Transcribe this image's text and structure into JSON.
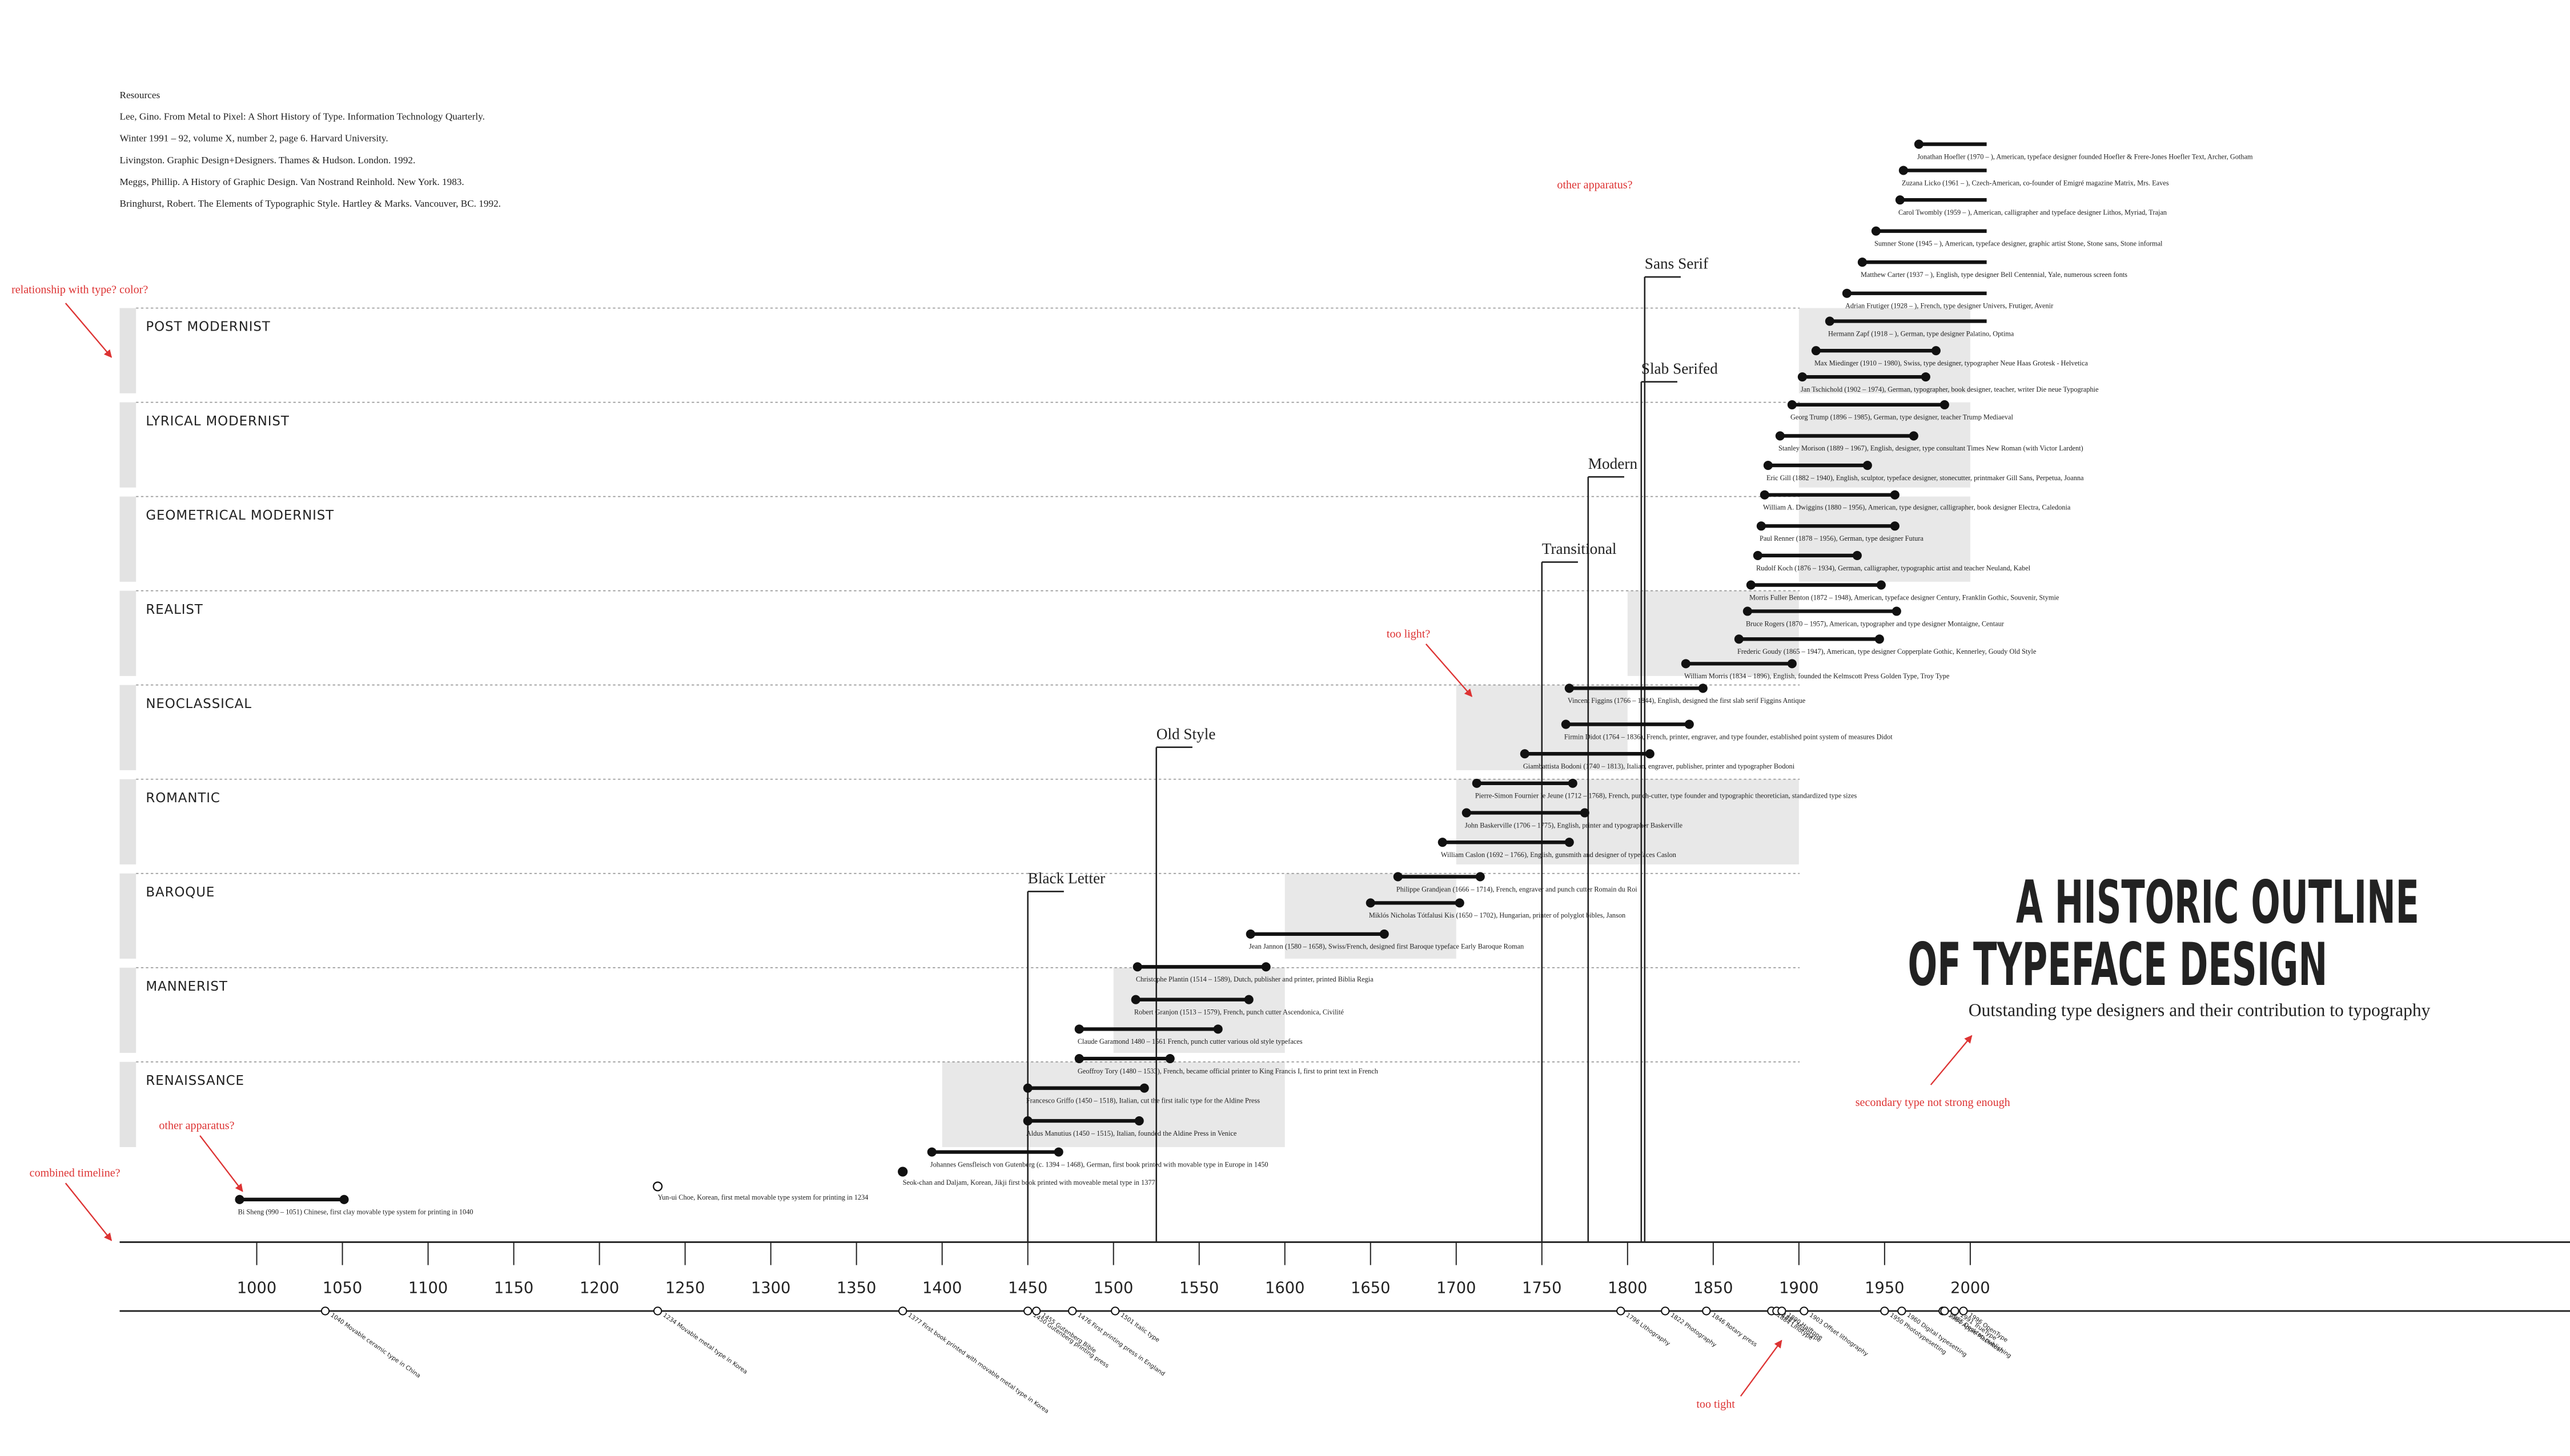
{
  "resources": {
    "heading": "Resources",
    "items": [
      "Lee, Gino. From Metal to Pixel: A Short History of Type. Information Technology Quarterly.",
      "Winter 1991 – 92, volume X, number 2, page 6. Harvard University.",
      "Livingston. Graphic Design+Designers. Thames & Hudson. London. 1992.",
      "Meggs, Phillip. A History of Graphic Design. Van Nostrand Reinhold. New York. 1983.",
      "Bringhurst, Robert. The Elements of Typographic Style. Hartley & Marks. Vancouver, BC. 1992."
    ]
  },
  "title": [
    "A HISTORIC OUTLINE",
    "OF TYPEFACE DESIGN"
  ],
  "subtitle": "Outstanding type designers and their contribution to typography",
  "axis": {
    "xlim": [
      920,
      2350
    ],
    "ticks": [
      1000,
      1050,
      1100,
      1150,
      1200,
      1250,
      1300,
      1350,
      1400,
      1450,
      1500,
      1550,
      1600,
      1650,
      1700,
      1750,
      1800,
      1850,
      1900,
      1950,
      2000
    ]
  },
  "periods": [
    {
      "name": "POST MODERNIST",
      "start": 1900,
      "end": 2000
    },
    {
      "name": "LYRICAL MODERNIST",
      "start": 1900,
      "end": 2000
    },
    {
      "name": "GEOMETRICAL MODERNIST",
      "start": 1900,
      "end": 2000
    },
    {
      "name": "REALIST",
      "start": 1800,
      "end": 1900
    },
    {
      "name": "NEOCLASSICAL",
      "start": 1700,
      "end": 1800
    },
    {
      "name": "ROMANTIC",
      "start": 1700,
      "end": 1900
    },
    {
      "name": "BAROQUE",
      "start": 1600,
      "end": 1700
    },
    {
      "name": "MANNERIST",
      "start": 1500,
      "end": 1600
    },
    {
      "name": "RENAISSANCE",
      "start": 1400,
      "end": 1600
    }
  ],
  "styles": [
    {
      "name": "Black Letter",
      "year": 1450
    },
    {
      "name": "Old Style",
      "year": 1525
    },
    {
      "name": "Transitional",
      "year": 1750
    },
    {
      "name": "Modern",
      "year": 1777
    },
    {
      "name": "Slab Serifed",
      "year": 1808
    },
    {
      "name": "Sans Serif",
      "year": 1810
    }
  ],
  "designers": [
    {
      "label": "Bi Sheng (990 – 1051) Chinese, first clay movable type system for printing in 1040",
      "born": 990,
      "died": 1051
    },
    {
      "label": "Yun-ui Choe, Korean, first metal movable type system for printing in 1234",
      "year": 1234,
      "marker": "open"
    },
    {
      "label": "Seok-chan and Daljam, Korean, Jikji first book printed with moveable metal type in 1377",
      "year": 1377,
      "marker": "filled"
    },
    {
      "label": "Johannes Gensfleisch von Gutenberg (c. 1394 – 1468), German, first book printed with movable type in Europe in 1450",
      "born": 1394,
      "died": 1468
    },
    {
      "label": "Aldus Manutius (1450 – 1515), Italian, founded the Aldine Press in Venice",
      "born": 1450,
      "died": 1515
    },
    {
      "label": "Francesco Griffo (1450 – 1518), Italian, cut the first italic type for the Aldine Press",
      "born": 1450,
      "died": 1518
    },
    {
      "label": "Geoffroy Tory (1480 – 1533), French, became official printer to King Francis I, first to print text in French",
      "born": 1480,
      "died": 1533
    },
    {
      "label": "Claude Garamond 1480 – 1561 French, punch cutter various old style typefaces",
      "born": 1480,
      "died": 1561
    },
    {
      "label": "Robert Granjon (1513 – 1579), French, punch cutter Ascendonica, Civilité",
      "born": 1513,
      "died": 1579
    },
    {
      "label": "Christophe Plantin (1514 – 1589), Dutch, publisher and printer, printed Biblia Regia",
      "born": 1514,
      "died": 1589
    },
    {
      "label": "Jean Jannon (1580 – 1658), Swiss/French, designed first Baroque typeface Early Baroque Roman",
      "born": 1580,
      "died": 1658
    },
    {
      "label": "Miklós Nicholas Tótfalusi Kis (1650 – 1702), Hungarian, printer of polyglot bibles, Janson",
      "born": 1650,
      "died": 1702
    },
    {
      "label": "Philippe Grandjean (1666 – 1714), French, engraver and punch cutter Romain du Roi",
      "born": 1666,
      "died": 1714
    },
    {
      "label": "William Caslon (1692 – 1766), English, gunsmith and designer of typefaces Caslon",
      "born": 1692,
      "died": 1766
    },
    {
      "label": "John Baskerville (1706 – 1775), English, printer and typographer Baskerville",
      "born": 1706,
      "died": 1775
    },
    {
      "label": "Pierre-Simon Fournier le Jeune (1712 – 1768), French, punch-cutter, type founder and typographic theoretician, standardized type sizes",
      "born": 1712,
      "died": 1768
    },
    {
      "label": "Giambattista Bodoni (1740 – 1813), Italian, engraver, publisher, printer and typographer Bodoni",
      "born": 1740,
      "died": 1813
    },
    {
      "label": "Firmin Didot (1764 – 1836), French, printer, engraver, and type founder, established point system of measures Didot",
      "born": 1764,
      "died": 1836
    },
    {
      "label": "Vincent Figgins (1766 – 1844), English, designed the first slab serif Figgins Antique",
      "born": 1766,
      "died": 1844
    },
    {
      "label": "William Morris (1834 – 1896), English, founded the Kelmscott Press Golden Type, Troy Type",
      "born": 1834,
      "died": 1896
    },
    {
      "label": "Frederic Goudy (1865 – 1947), American, type designer Copperplate Gothic, Kennerley, Goudy Old Style",
      "born": 1865,
      "died": 1947
    },
    {
      "label": "Bruce Rogers (1870 – 1957), American, typographer and type designer Montaigne, Centaur",
      "born": 1870,
      "died": 1957
    },
    {
      "label": "Morris Fuller Benton (1872 – 1948), American, typeface designer Century, Franklin Gothic, Souvenir, Stymie",
      "born": 1872,
      "died": 1948
    },
    {
      "label": "Rudolf Koch (1876 – 1934), German, calligrapher, typographic artist and teacher Neuland, Kabel",
      "born": 1876,
      "died": 1934
    },
    {
      "label": "Paul Renner (1878 – 1956), German, type designer Futura",
      "born": 1878,
      "died": 1956
    },
    {
      "label": "William A. Dwiggins (1880 – 1956), American, type designer, calligrapher, book designer Electra, Caledonia",
      "born": 1880,
      "died": 1956
    },
    {
      "label": "Eric Gill (1882 – 1940), English, sculptor, typeface designer, stonecutter, printmaker Gill Sans, Perpetua, Joanna",
      "born": 1882,
      "died": 1940
    },
    {
      "label": "Stanley Morison (1889 – 1967), English, designer, type consultant Times New Roman (with Victor Lardent)",
      "born": 1889,
      "died": 1967
    },
    {
      "label": "Georg Trump (1896 – 1985), German, type designer, teacher Trump Mediaeval",
      "born": 1896,
      "died": 1985
    },
    {
      "label": "Jan Tschichold (1902 – 1974), German, typographer, book designer, teacher, writer Die neue Typographie",
      "born": 1902,
      "died": 1974
    },
    {
      "label": "Max Miedinger (1910 – 1980), Swiss, type designer, typographer Neue Haas Grotesk - Helvetica",
      "born": 1910,
      "died": 1980
    },
    {
      "label": "Hermann Zapf (1918 – ), German, type designer Palatino, Optima",
      "born": 1918,
      "died": null
    },
    {
      "label": "Adrian Frutiger (1928 – ), French, type designer Univers, Frutiger, Avenir",
      "born": 1928,
      "died": null
    },
    {
      "label": "Matthew Carter (1937 – ), English, type designer Bell Centennial, Yale, numerous screen fonts",
      "born": 1937,
      "died": null
    },
    {
      "label": "Sumner Stone (1945 – ), American, typeface designer, graphic artist Stone, Stone sans, Stone informal",
      "born": 1945,
      "died": null
    },
    {
      "label": "Carol Twombly (1959 – ), American, calligrapher and typeface designer Lithos, Myriad, Trajan",
      "born": 1959,
      "died": null
    },
    {
      "label": "Zuzana Licko (1961 – ), Czech-American, co-founder of Emigré magazine Matrix, Mrs. Eaves",
      "born": 1961,
      "died": null
    },
    {
      "label": "Jonathan Hoefler (1970 – ), American, typeface designer founded Hoefler & Frere-Jones Hoefler Text, Archer, Gotham",
      "born": 1970,
      "died": null
    }
  ],
  "events": [
    {
      "label": "1040 Movable ceramic type in China",
      "year": 1040
    },
    {
      "label": "1234 Movable metal type in Korea",
      "year": 1234
    },
    {
      "label": "1377 First book printed with movable metal type in Korea",
      "year": 1377
    },
    {
      "label": "1450 Gutenberg printing press",
      "year": 1450
    },
    {
      "label": "1455 Gutenberg Bible",
      "year": 1455
    },
    {
      "label": "1476 First printing press in England",
      "year": 1476
    },
    {
      "label": "1501 Italic type",
      "year": 1501
    },
    {
      "label": "1796 Lithography",
      "year": 1796
    },
    {
      "label": "1822 Photography",
      "year": 1822
    },
    {
      "label": "1846 Rotary press",
      "year": 1846
    },
    {
      "label": "1884 Linotype",
      "year": 1884
    },
    {
      "label": "1887 Monotype",
      "year": 1887
    },
    {
      "label": "1890 Halftone",
      "year": 1890
    },
    {
      "label": "1903 Offset lithography",
      "year": 1903
    },
    {
      "label": "1950 Phototypesetting",
      "year": 1950
    },
    {
      "label": "1960 Digital typesetting",
      "year": 1960
    },
    {
      "label": "1984 Apple Macintosh",
      "year": 1984
    },
    {
      "label": "1985 Desktop publishing",
      "year": 1985
    },
    {
      "label": "1991 TrueType",
      "year": 1991
    },
    {
      "label": "1996 OpenType",
      "year": 1996
    }
  ],
  "annotations": [
    "relationship with type? color?",
    "other apparatus?",
    "other apparatus?",
    "combined timeline?",
    "too light?",
    "secondary type not strong enough",
    "too tight"
  ]
}
